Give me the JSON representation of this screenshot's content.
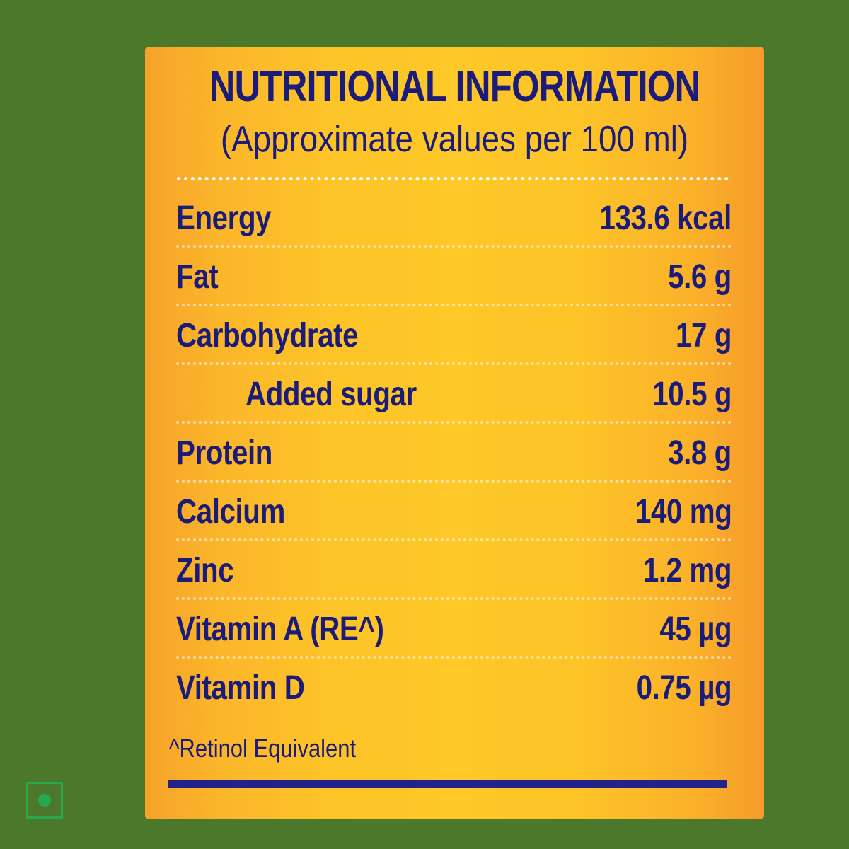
{
  "panel": {
    "title": "NUTRITIONAL INFORMATION",
    "subtitle": "(Approximate values per 100 ml)"
  },
  "rows": [
    {
      "label": "Energy",
      "value": "133.6 kcal"
    },
    {
      "label": "Fat",
      "value": "5.6 g"
    },
    {
      "label": "Carbohydrate",
      "value": "17 g"
    },
    {
      "label": "Added sugar",
      "value": "10.5 g"
    },
    {
      "label": "Protein",
      "value": "3.8 g"
    },
    {
      "label": "Calcium",
      "value": "140 mg"
    },
    {
      "label": "Zinc",
      "value": "1.2 mg"
    },
    {
      "label": "Vitamin A (RE^)",
      "value": "45 µg"
    },
    {
      "label": "Vitamin D",
      "value": "0.75 µg"
    }
  ],
  "footnote": "^Retinol Equivalent",
  "colors": {
    "background": "#4c782c",
    "panel": "#fdc428",
    "text": "#1b1c7a",
    "veg_mark": "#27a84a"
  },
  "icons": {
    "veg_mark": "vegetarian-symbol-icon"
  }
}
